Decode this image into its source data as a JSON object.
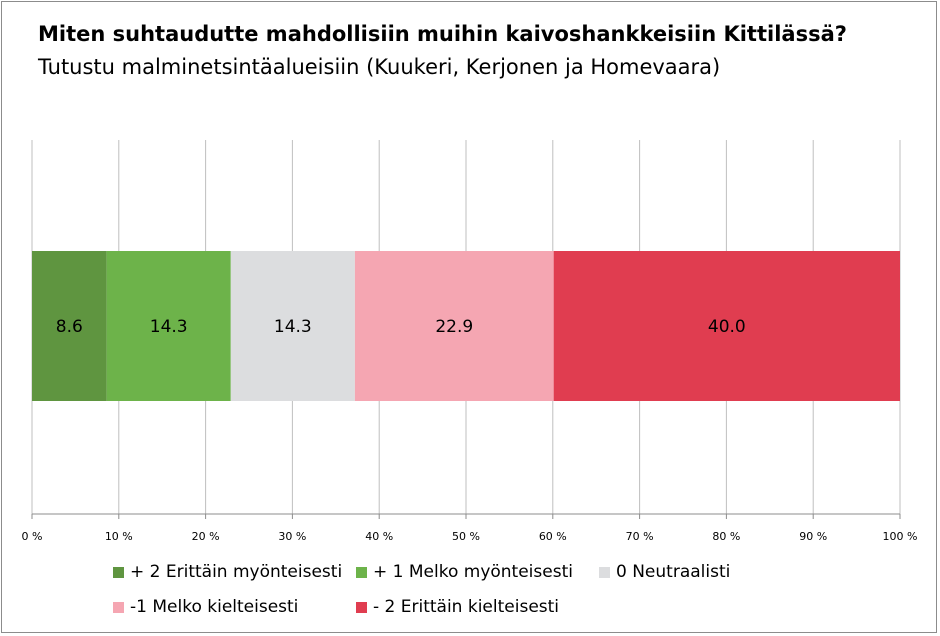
{
  "chart_data": {
    "type": "bar",
    "orientation": "horizontal",
    "stacked": true,
    "title_bold": "Miten suhtaudutte mahdollisiin muihin kaivoshankkeisiin Kittilässä?",
    "title_rest": " Tutustu malminetsintäalueisiin (Kuukeri, Kerjonen ja Homevaara)",
    "xlim": [
      0,
      100
    ],
    "x_ticks": [
      "0 %",
      "10 %",
      "20 %",
      "30 %",
      "40 %",
      "50 %",
      "60 %",
      "70 %",
      "80 %",
      "90 %",
      "100 %"
    ],
    "grid": true,
    "legend_position": "bottom",
    "series": [
      {
        "name": "+ 2 Erittäin myönteisesti",
        "value": 8.6,
        "label": "8.6",
        "color": "#5f9540"
      },
      {
        "name": "+ 1 Melko myönteisesti",
        "value": 14.3,
        "label": "14.3",
        "color": "#6db34a"
      },
      {
        "name": "0 Neutraalisti",
        "value": 14.3,
        "label": "14.3",
        "color": "#dcdddf"
      },
      {
        "name": "-1 Melko kielteisesti",
        "value": 22.9,
        "label": "22.9",
        "color": "#f5a6b2"
      },
      {
        "name": "- 2 Erittäin kielteisesti",
        "value": 40.0,
        "label": "40.0",
        "color": "#e03d50"
      }
    ]
  }
}
